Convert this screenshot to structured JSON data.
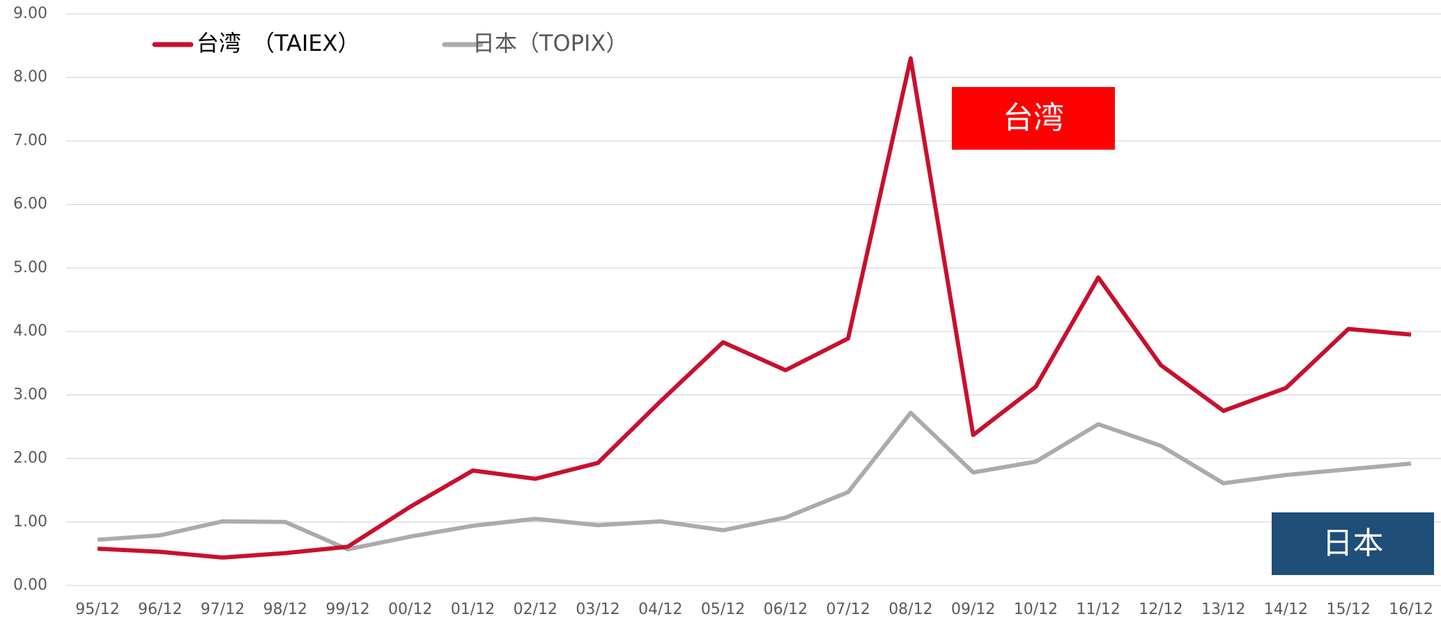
{
  "chart_data": {
    "type": "line",
    "categories": [
      "95/12",
      "96/12",
      "97/12",
      "98/12",
      "99/12",
      "00/12",
      "01/12",
      "02/12",
      "03/12",
      "04/12",
      "05/12",
      "06/12",
      "07/12",
      "08/12",
      "09/12",
      "10/12",
      "11/12",
      "12/12",
      "13/12",
      "14/12",
      "15/12",
      "16/12"
    ],
    "series": [
      {
        "name": "台湾　（TAIEX）",
        "color": "#c8102e",
        "values": [
          0.58,
          0.53,
          0.44,
          0.51,
          0.61,
          1.24,
          1.81,
          1.68,
          1.93,
          2.9,
          3.83,
          3.39,
          3.89,
          8.3,
          2.37,
          3.13,
          4.85,
          3.47,
          2.75,
          3.11,
          4.04,
          3.95
        ]
      },
      {
        "name": "日本（TOPIX）",
        "color": "#aeaaaa",
        "values": [
          0.72,
          0.79,
          1.01,
          1.0,
          0.57,
          0.77,
          0.94,
          1.05,
          0.95,
          1.01,
          0.87,
          1.07,
          1.47,
          2.72,
          1.78,
          1.95,
          2.54,
          2.2,
          1.61,
          1.74,
          1.83,
          1.92
        ]
      }
    ],
    "ylim": [
      0,
      9
    ],
    "yticks": [
      {
        "value": 0,
        "label": "0.00"
      },
      {
        "value": 1,
        "label": "1.00"
      },
      {
        "value": 2,
        "label": "2.00"
      },
      {
        "value": 3,
        "label": "3.00"
      },
      {
        "value": 4,
        "label": "4.00"
      },
      {
        "value": 5,
        "label": "5.00"
      },
      {
        "value": 6,
        "label": "6.00"
      },
      {
        "value": 7,
        "label": "7.00"
      },
      {
        "value": 8,
        "label": "8.00"
      },
      {
        "value": 9,
        "label": "9.00"
      }
    ],
    "grid": true,
    "legend": "top-left",
    "annotations": [
      {
        "text": "台湾",
        "color": "#ff0000"
      },
      {
        "text": "日本",
        "color": "#1f4e79"
      }
    ]
  }
}
